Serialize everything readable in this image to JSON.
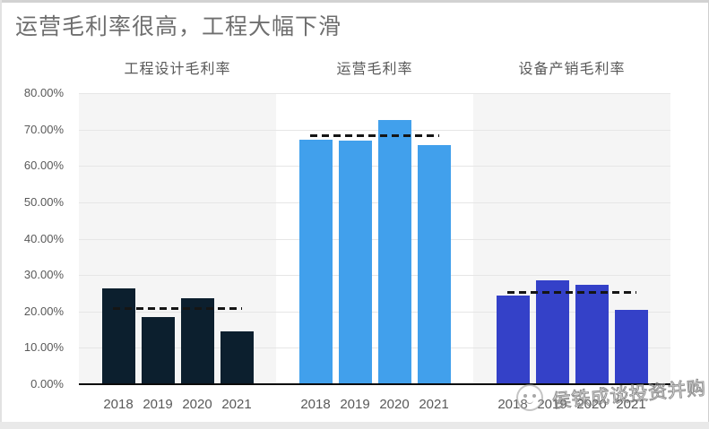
{
  "page": {
    "title": "运营毛利率很高，工程大幅下滑"
  },
  "watermark": {
    "text": "侯铁成谈投资并购",
    "logo": "cartoon-face-circle-icon"
  },
  "colors": {
    "title_text": "#6f6f6f",
    "axis_text": "#595959",
    "gridline": "#e6e6e6",
    "baseline": "#0a0a0a",
    "average_line": "#151515",
    "panel_gray": "#f5f5f5",
    "panel_white": "#ffffff"
  },
  "chart_data": {
    "type": "bar",
    "layout": "three side-by-side panels (small multiples) sharing one percentage y-axis; dashed black line per panel marks the 4-year average",
    "title": "运营毛利率很高，工程大幅下滑",
    "categories": [
      "2018",
      "2019",
      "2020",
      "2021"
    ],
    "y_ticks": [
      "80.00%",
      "70.00%",
      "60.00%",
      "50.00%",
      "40.00%",
      "30.00%",
      "20.00%",
      "10.00%",
      "0.00%"
    ],
    "ylim_pct": [
      0,
      80
    ],
    "grid": true,
    "panels": [
      {
        "title": "工程设计毛利率",
        "bar_color": "#0c1f2e",
        "panel_bg": "#f5f5f5",
        "values_pct": [
          26.4,
          18.5,
          23.7,
          14.6
        ],
        "average_pct": 20.8
      },
      {
        "title": "运营毛利率",
        "bar_color": "#41a0ec",
        "panel_bg": "#ffffff",
        "values_pct": [
          67.3,
          67.0,
          72.7,
          65.7
        ],
        "average_pct": 68.2
      },
      {
        "title": "设备产销毛利率",
        "bar_color": "#3441c8",
        "panel_bg": "#f5f5f5",
        "values_pct": [
          24.4,
          28.5,
          27.3,
          20.4
        ],
        "average_pct": 25.2
      }
    ]
  }
}
